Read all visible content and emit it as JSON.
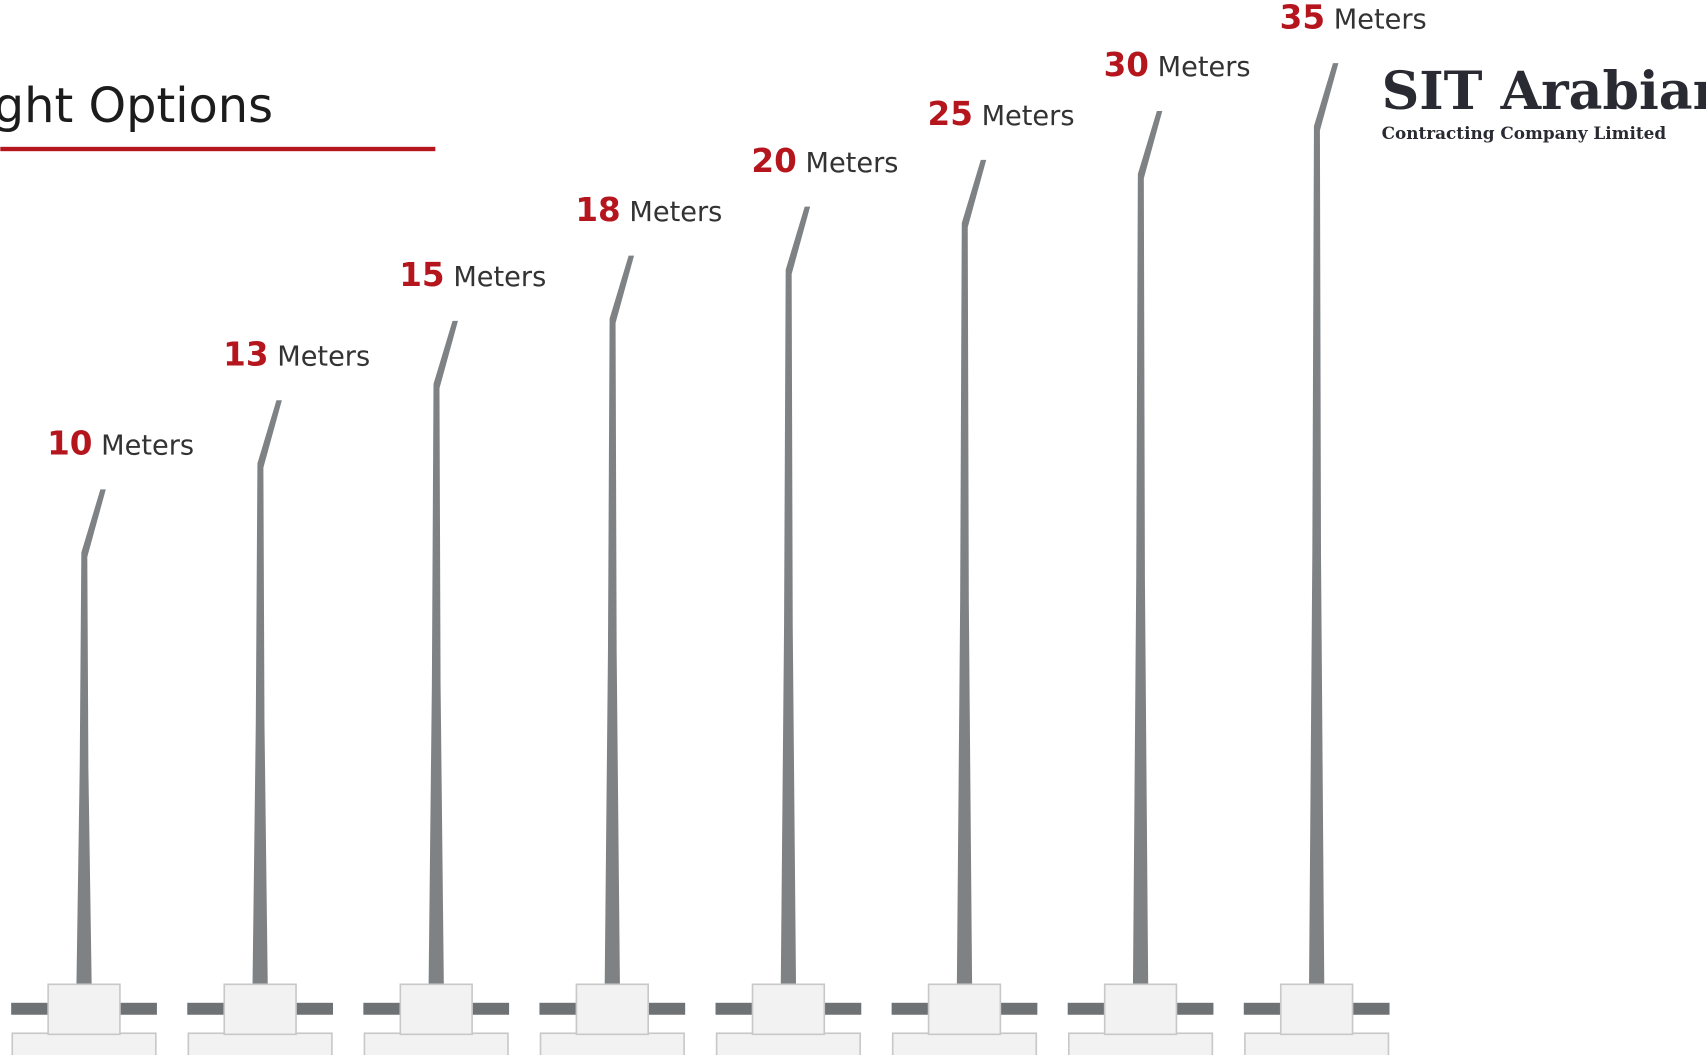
{
  "header": {
    "title": "ght Options"
  },
  "logo": {
    "name": "SIT Arabian",
    "tagline": "Contracting Company Limited"
  },
  "poles": [
    {
      "height": 10,
      "unit": "Meters"
    },
    {
      "height": 13,
      "unit": "Meters"
    },
    {
      "height": 15,
      "unit": "Meters"
    },
    {
      "height": 18,
      "unit": "Meters"
    },
    {
      "height": 20,
      "unit": "Meters"
    },
    {
      "height": 25,
      "unit": "Meters"
    },
    {
      "height": 30,
      "unit": "Meters"
    },
    {
      "height": 35,
      "unit": "Meters"
    }
  ]
}
